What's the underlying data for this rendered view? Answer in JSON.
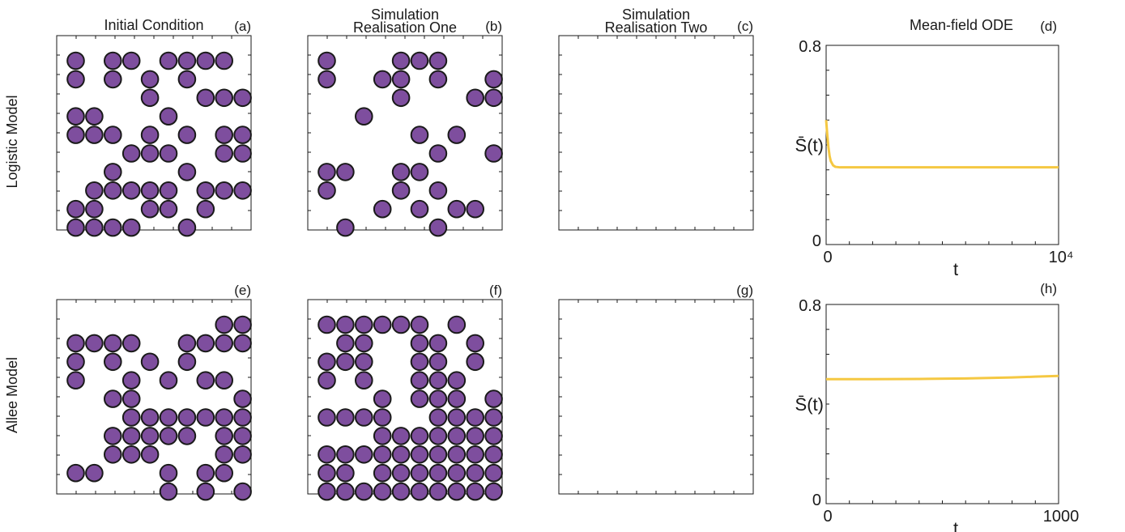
{
  "rows": [
    {
      "label": "Logistic Model"
    },
    {
      "label": "Allee Model"
    }
  ],
  "columns": [
    {
      "title_lines": [
        "Initial Condition"
      ]
    },
    {
      "title_lines": [
        "Simulation",
        "Realisation One"
      ]
    },
    {
      "title_lines": [
        "Simulation",
        "Realisation Two"
      ]
    },
    {
      "title_lines": [
        "Mean-field ODE"
      ]
    }
  ],
  "colors": {
    "agent_fill": "#7E4E9E",
    "agent_stroke": "#1A1A1A",
    "ode_line": "#F5C842",
    "axis": "#1A1A1A"
  },
  "chart_data": [
    {
      "panel": "(a)",
      "type": "scatter",
      "lattice": [
        10,
        10
      ],
      "points": [
        [
          1,
          1
        ],
        [
          3,
          1
        ],
        [
          4,
          1
        ],
        [
          6,
          1
        ],
        [
          7,
          1
        ],
        [
          8,
          1
        ],
        [
          9,
          1
        ],
        [
          1,
          2
        ],
        [
          3,
          2
        ],
        [
          5,
          2
        ],
        [
          7,
          2
        ],
        [
          5,
          3
        ],
        [
          8,
          3
        ],
        [
          9,
          3
        ],
        [
          10,
          3
        ],
        [
          1,
          4
        ],
        [
          2,
          4
        ],
        [
          6,
          4
        ],
        [
          1,
          5
        ],
        [
          2,
          5
        ],
        [
          3,
          5
        ],
        [
          5,
          5
        ],
        [
          7,
          5
        ],
        [
          9,
          5
        ],
        [
          10,
          5
        ],
        [
          4,
          6
        ],
        [
          5,
          6
        ],
        [
          6,
          6
        ],
        [
          9,
          6
        ],
        [
          10,
          6
        ],
        [
          3,
          7
        ],
        [
          7,
          7
        ],
        [
          2,
          8
        ],
        [
          3,
          8
        ],
        [
          4,
          8
        ],
        [
          5,
          8
        ],
        [
          6,
          8
        ],
        [
          8,
          8
        ],
        [
          9,
          8
        ],
        [
          10,
          8
        ],
        [
          1,
          9
        ],
        [
          2,
          9
        ],
        [
          5,
          9
        ],
        [
          6,
          9
        ],
        [
          8,
          9
        ],
        [
          1,
          10
        ],
        [
          2,
          10
        ],
        [
          3,
          10
        ],
        [
          4,
          10
        ],
        [
          7,
          10
        ]
      ]
    },
    {
      "panel": "(b)",
      "type": "scatter",
      "lattice": [
        10,
        10
      ],
      "points": [
        [
          1,
          1
        ],
        [
          5,
          1
        ],
        [
          6,
          1
        ],
        [
          7,
          1
        ],
        [
          1,
          2
        ],
        [
          4,
          2
        ],
        [
          5,
          2
        ],
        [
          7,
          2
        ],
        [
          10,
          2
        ],
        [
          5,
          3
        ],
        [
          9,
          3
        ],
        [
          10,
          3
        ],
        [
          3,
          4
        ],
        [
          6,
          5
        ],
        [
          8,
          5
        ],
        [
          7,
          6
        ],
        [
          10,
          6
        ],
        [
          1,
          7
        ],
        [
          2,
          7
        ],
        [
          5,
          7
        ],
        [
          6,
          7
        ],
        [
          1,
          8
        ],
        [
          5,
          8
        ],
        [
          7,
          8
        ],
        [
          4,
          9
        ],
        [
          6,
          9
        ],
        [
          8,
          9
        ],
        [
          9,
          9
        ],
        [
          2,
          10
        ],
        [
          7,
          10
        ]
      ]
    },
    {
      "panel": "(c)",
      "type": "scatter",
      "lattice": [
        10,
        10
      ],
      "points": []
    },
    {
      "panel": "(d)",
      "type": "line",
      "title": "Mean-field ODE",
      "xlabel": "t",
      "ylabel": "S̄(t)",
      "xlim": [
        0,
        10000
      ],
      "ylim": [
        0,
        0.8
      ],
      "xticks": [
        "0",
        "10⁴"
      ],
      "yticks": [
        "0",
        "0.8"
      ],
      "x": [
        0,
        50,
        100,
        150,
        200,
        300,
        400,
        600,
        1000,
        2000,
        4000,
        6000,
        8000,
        10000
      ],
      "y": [
        0.5,
        0.44,
        0.39,
        0.355,
        0.335,
        0.318,
        0.312,
        0.31,
        0.31,
        0.31,
        0.31,
        0.31,
        0.31,
        0.31
      ]
    },
    {
      "panel": "(e)",
      "type": "scatter",
      "lattice": [
        10,
        10
      ],
      "points": [
        [
          9,
          1
        ],
        [
          10,
          1
        ],
        [
          1,
          2
        ],
        [
          2,
          2
        ],
        [
          3,
          2
        ],
        [
          4,
          2
        ],
        [
          7,
          2
        ],
        [
          8,
          2
        ],
        [
          9,
          2
        ],
        [
          10,
          2
        ],
        [
          1,
          3
        ],
        [
          3,
          3
        ],
        [
          5,
          3
        ],
        [
          7,
          3
        ],
        [
          1,
          4
        ],
        [
          4,
          4
        ],
        [
          6,
          4
        ],
        [
          8,
          4
        ],
        [
          9,
          4
        ],
        [
          3,
          5
        ],
        [
          4,
          5
        ],
        [
          10,
          5
        ],
        [
          4,
          6
        ],
        [
          5,
          6
        ],
        [
          6,
          6
        ],
        [
          7,
          6
        ],
        [
          8,
          6
        ],
        [
          9,
          6
        ],
        [
          10,
          6
        ],
        [
          3,
          7
        ],
        [
          4,
          7
        ],
        [
          5,
          7
        ],
        [
          6,
          7
        ],
        [
          7,
          7
        ],
        [
          9,
          7
        ],
        [
          10,
          7
        ],
        [
          3,
          8
        ],
        [
          4,
          8
        ],
        [
          5,
          8
        ],
        [
          9,
          8
        ],
        [
          10,
          8
        ],
        [
          1,
          9
        ],
        [
          2,
          9
        ],
        [
          6,
          9
        ],
        [
          8,
          9
        ],
        [
          9,
          9
        ],
        [
          6,
          10
        ],
        [
          8,
          10
        ],
        [
          10,
          10
        ]
      ]
    },
    {
      "panel": "(f)",
      "type": "scatter",
      "lattice": [
        10,
        10
      ],
      "points": [
        [
          1,
          1
        ],
        [
          2,
          1
        ],
        [
          3,
          1
        ],
        [
          4,
          1
        ],
        [
          5,
          1
        ],
        [
          6,
          1
        ],
        [
          8,
          1
        ],
        [
          2,
          2
        ],
        [
          3,
          2
        ],
        [
          6,
          2
        ],
        [
          7,
          2
        ],
        [
          9,
          2
        ],
        [
          1,
          3
        ],
        [
          2,
          3
        ],
        [
          3,
          3
        ],
        [
          6,
          3
        ],
        [
          7,
          3
        ],
        [
          9,
          3
        ],
        [
          1,
          4
        ],
        [
          3,
          4
        ],
        [
          6,
          4
        ],
        [
          7,
          4
        ],
        [
          8,
          4
        ],
        [
          4,
          5
        ],
        [
          6,
          5
        ],
        [
          7,
          5
        ],
        [
          8,
          5
        ],
        [
          10,
          5
        ],
        [
          1,
          6
        ],
        [
          2,
          6
        ],
        [
          3,
          6
        ],
        [
          4,
          6
        ],
        [
          7,
          6
        ],
        [
          8,
          6
        ],
        [
          9,
          6
        ],
        [
          10,
          6
        ],
        [
          4,
          7
        ],
        [
          5,
          7
        ],
        [
          6,
          7
        ],
        [
          7,
          7
        ],
        [
          8,
          7
        ],
        [
          9,
          7
        ],
        [
          10,
          7
        ],
        [
          1,
          8
        ],
        [
          2,
          8
        ],
        [
          3,
          8
        ],
        [
          4,
          8
        ],
        [
          5,
          8
        ],
        [
          6,
          8
        ],
        [
          7,
          8
        ],
        [
          8,
          8
        ],
        [
          9,
          8
        ],
        [
          10,
          8
        ],
        [
          1,
          9
        ],
        [
          2,
          9
        ],
        [
          4,
          9
        ],
        [
          5,
          9
        ],
        [
          6,
          9
        ],
        [
          7,
          9
        ],
        [
          8,
          9
        ],
        [
          9,
          9
        ],
        [
          10,
          9
        ],
        [
          1,
          10
        ],
        [
          2,
          10
        ],
        [
          3,
          10
        ],
        [
          4,
          10
        ],
        [
          5,
          10
        ],
        [
          6,
          10
        ],
        [
          7,
          10
        ],
        [
          8,
          10
        ],
        [
          9,
          10
        ],
        [
          10,
          10
        ]
      ]
    },
    {
      "panel": "(g)",
      "type": "scatter",
      "lattice": [
        10,
        10
      ],
      "points": []
    },
    {
      "panel": "(h)",
      "type": "line",
      "xlabel": "t",
      "ylabel": "S̄(t)",
      "xlim": [
        0,
        1000
      ],
      "ylim": [
        0,
        0.8
      ],
      "xticks": [
        "0",
        "1000"
      ],
      "yticks": [
        "0",
        "0.8"
      ],
      "x": [
        0,
        200,
        400,
        600,
        800,
        900,
        1000
      ],
      "y": [
        0.5,
        0.5,
        0.501,
        0.503,
        0.507,
        0.51,
        0.513
      ]
    }
  ]
}
